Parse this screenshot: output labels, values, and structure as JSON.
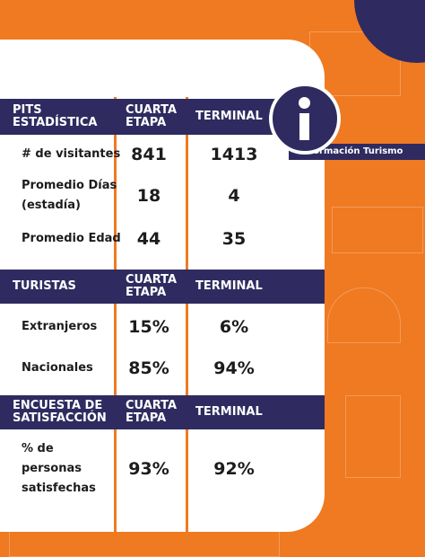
{
  "badge": "Información Turismo",
  "sections": [
    {
      "header": [
        [
          "PITS",
          "ESTADÍSTICA"
        ],
        [
          "CUARTA",
          "ETAPA"
        ],
        [
          "TERMINAL"
        ]
      ],
      "rows": [
        {
          "label": [
            "# de visitantes"
          ],
          "values": [
            "841",
            "1413"
          ]
        },
        {
          "label": [
            "Promedio Días",
            "(estadía)"
          ],
          "values": [
            "18",
            "4"
          ]
        },
        {
          "label": [
            "Promedio Edad"
          ],
          "values": [
            "44",
            "35"
          ]
        }
      ]
    },
    {
      "header": [
        [
          "TURISTAS"
        ],
        [
          "CUARTA",
          "ETAPA"
        ],
        [
          "TERMINAL"
        ]
      ],
      "rows": [
        {
          "label": [
            "Extranjeros"
          ],
          "values": [
            "15%",
            "6%"
          ]
        },
        {
          "label": [
            "Nacionales"
          ],
          "values": [
            "85%",
            "94%"
          ]
        }
      ]
    },
    {
      "header": [
        [
          "ENCUESTA DE",
          "SATISFACCIÓN"
        ],
        [
          "CUARTA",
          "ETAPA"
        ],
        [
          "TERMINAL"
        ]
      ],
      "rows": [
        {
          "label": [
            "% de",
            "personas",
            "satisfechas"
          ],
          "values": [
            "93%",
            "92%"
          ]
        }
      ]
    }
  ]
}
